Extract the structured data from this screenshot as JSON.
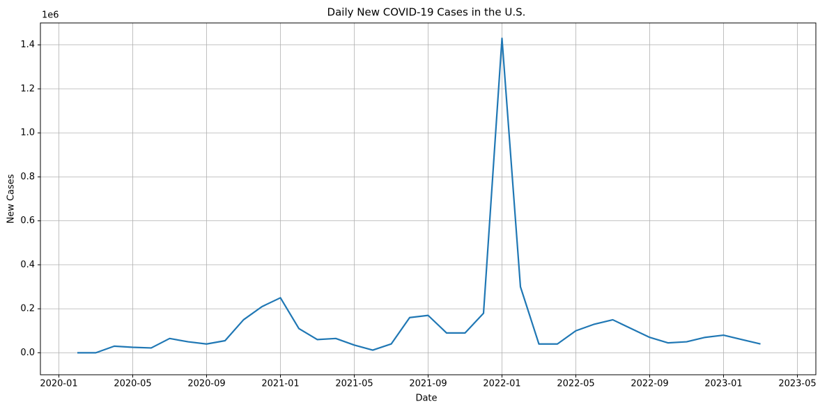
{
  "chart_data": {
    "type": "line",
    "title": "Daily New COVID-19 Cases in the U.S.",
    "x_label": "Date",
    "y_label": "New Cases",
    "y_offset_label": "1e6",
    "x": [
      "2020-02",
      "2020-03",
      "2020-04",
      "2020-05",
      "2020-06",
      "2020-07",
      "2020-08",
      "2020-09",
      "2020-10",
      "2020-11",
      "2020-12",
      "2021-01",
      "2021-02",
      "2021-03",
      "2021-04",
      "2021-05",
      "2021-06",
      "2021-07",
      "2021-08",
      "2021-09",
      "2021-10",
      "2021-11",
      "2021-12",
      "2022-01",
      "2022-02",
      "2022-03",
      "2022-04",
      "2022-05",
      "2022-06",
      "2022-07",
      "2022-08",
      "2022-09",
      "2022-10",
      "2022-11",
      "2022-12",
      "2023-01",
      "2023-02",
      "2023-03"
    ],
    "values": [
      0,
      0,
      30000,
      25000,
      22000,
      65000,
      50000,
      40000,
      55000,
      150000,
      210000,
      250000,
      110000,
      60000,
      65000,
      35000,
      12000,
      40000,
      160000,
      170000,
      90000,
      90000,
      180000,
      1430000,
      300000,
      40000,
      40000,
      100000,
      130000,
      150000,
      110000,
      70000,
      45000,
      50000,
      70000,
      80000,
      60000,
      40000
    ],
    "color": "#1f77b4",
    "xlim": [
      "2019-12",
      "2023-06"
    ],
    "xticks": [
      "2020-01",
      "2020-05",
      "2020-09",
      "2021-01",
      "2021-05",
      "2021-09",
      "2022-01",
      "2022-05",
      "2022-09",
      "2023-01",
      "2023-05"
    ],
    "ylim": [
      -100000,
      1500000
    ],
    "yticks": [
      {
        "value": 0,
        "label": "0.0"
      },
      {
        "value": 200000,
        "label": "0.2"
      },
      {
        "value": 400000,
        "label": "0.4"
      },
      {
        "value": 600000,
        "label": "0.6"
      },
      {
        "value": 800000,
        "label": "0.8"
      },
      {
        "value": 1000000,
        "label": "1.0"
      },
      {
        "value": 1200000,
        "label": "1.2"
      },
      {
        "value": 1400000,
        "label": "1.4"
      }
    ],
    "grid": true
  }
}
